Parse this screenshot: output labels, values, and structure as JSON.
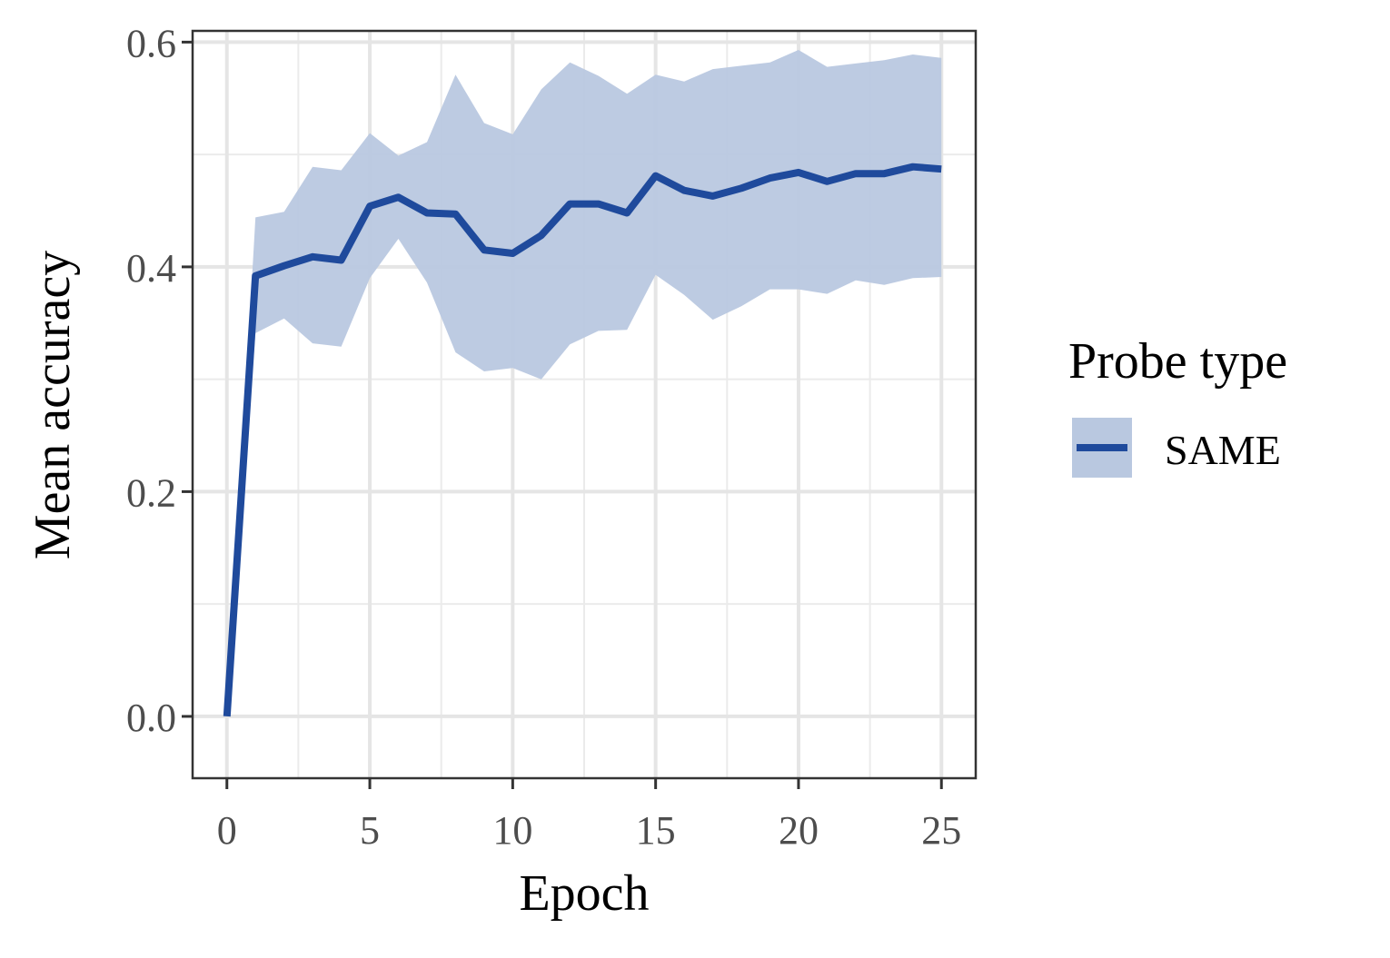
{
  "chart_data": {
    "type": "line",
    "xlabel": "Epoch",
    "ylabel": "Mean accuracy",
    "xlim": [
      -1.2,
      26.2
    ],
    "ylim": [
      -0.055,
      0.61
    ],
    "x_ticks": [
      0,
      5,
      10,
      15,
      20,
      25
    ],
    "x_tick_labels": [
      "0",
      "5",
      "10",
      "15",
      "20",
      "25"
    ],
    "y_ticks": [
      0.0,
      0.2,
      0.4,
      0.6
    ],
    "y_tick_labels": [
      "0.0",
      "0.2",
      "0.4",
      "0.6"
    ],
    "grid": true,
    "legend": {
      "title": "Probe type",
      "position": "right",
      "entries": [
        "SAME"
      ]
    },
    "series": [
      {
        "name": "SAME",
        "color": "#1f4a9c",
        "band_color": "#b9c8e0",
        "x": [
          0,
          1,
          2,
          3,
          4,
          5,
          6,
          7,
          8,
          9,
          10,
          11,
          12,
          13,
          14,
          15,
          16,
          17,
          18,
          19,
          20,
          21,
          22,
          23,
          24,
          25
        ],
        "mean": [
          0.0,
          0.392,
          0.401,
          0.409,
          0.406,
          0.454,
          0.462,
          0.448,
          0.447,
          0.415,
          0.412,
          0.428,
          0.456,
          0.456,
          0.448,
          0.481,
          0.468,
          0.463,
          0.47,
          0.479,
          0.484,
          0.476,
          0.483,
          0.483,
          0.489,
          0.487
        ],
        "upper": [
          0.0,
          0.444,
          0.449,
          0.489,
          0.486,
          0.519,
          0.499,
          0.511,
          0.571,
          0.528,
          0.518,
          0.558,
          0.582,
          0.57,
          0.554,
          0.571,
          0.565,
          0.576,
          0.579,
          0.582,
          0.593,
          0.578,
          0.581,
          0.584,
          0.589,
          0.586
        ],
        "lower": [
          0.0,
          0.341,
          0.354,
          0.332,
          0.329,
          0.39,
          0.425,
          0.386,
          0.324,
          0.307,
          0.31,
          0.3,
          0.331,
          0.343,
          0.344,
          0.393,
          0.375,
          0.353,
          0.365,
          0.38,
          0.38,
          0.376,
          0.388,
          0.384,
          0.39,
          0.391
        ]
      }
    ]
  }
}
